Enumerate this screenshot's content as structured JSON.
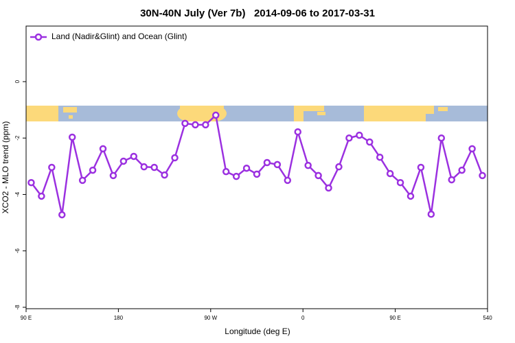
{
  "chart_data": {
    "type": "line",
    "title": "30N-40N July (Ver 7b)   2014-09-06 to 2017-03-31",
    "xlabel": "Longitude (deg E)",
    "ylabel": "XCO2 - MLO trend (ppm)",
    "x": [
      95,
      105,
      115,
      125,
      135,
      145,
      155,
      165,
      175,
      185,
      195,
      205,
      215,
      225,
      235,
      245,
      255,
      265,
      275,
      285,
      295,
      305,
      315,
      325,
      335,
      345,
      355,
      365,
      375,
      385,
      395,
      405,
      415,
      425,
      435,
      445,
      455,
      465,
      475,
      485,
      495,
      505,
      515,
      525,
      535
    ],
    "series": [
      {
        "name": "Land (Nadir&Glint) and Ocean (Glint)",
        "color": "#9b30e0",
        "values": [
          -3.58,
          -4.06,
          -3.04,
          -4.72,
          -1.97,
          -3.5,
          -3.14,
          -2.38,
          -3.33,
          -2.82,
          -2.65,
          -3.02,
          -3.04,
          -3.31,
          -2.7,
          -1.48,
          -1.53,
          -1.53,
          -1.19,
          -3.19,
          -3.36,
          -3.07,
          -3.28,
          -2.87,
          -2.94,
          -3.5,
          -1.78,
          -2.97,
          -3.33,
          -3.77,
          -3.02,
          -2.0,
          -1.9,
          -2.14,
          -2.68,
          -3.26,
          -3.58,
          -4.06,
          -3.04,
          -4.7,
          -2.0,
          -3.48,
          -3.14,
          -2.38,
          -3.33
        ]
      }
    ],
    "xlim": [
      90,
      540
    ],
    "xticks": [
      {
        "value": 90,
        "label": "90 E"
      },
      180,
      {
        "value": 270,
        "label": "90 W"
      },
      {
        "value": 360,
        "label": "0"
      },
      {
        "value": 450,
        "label": "90 E"
      },
      540
    ],
    "ylim": [
      -8.05,
      1.97
    ],
    "yticks": [
      0,
      -2,
      -4,
      -6,
      -8
    ],
    "legend": "top-left"
  }
}
